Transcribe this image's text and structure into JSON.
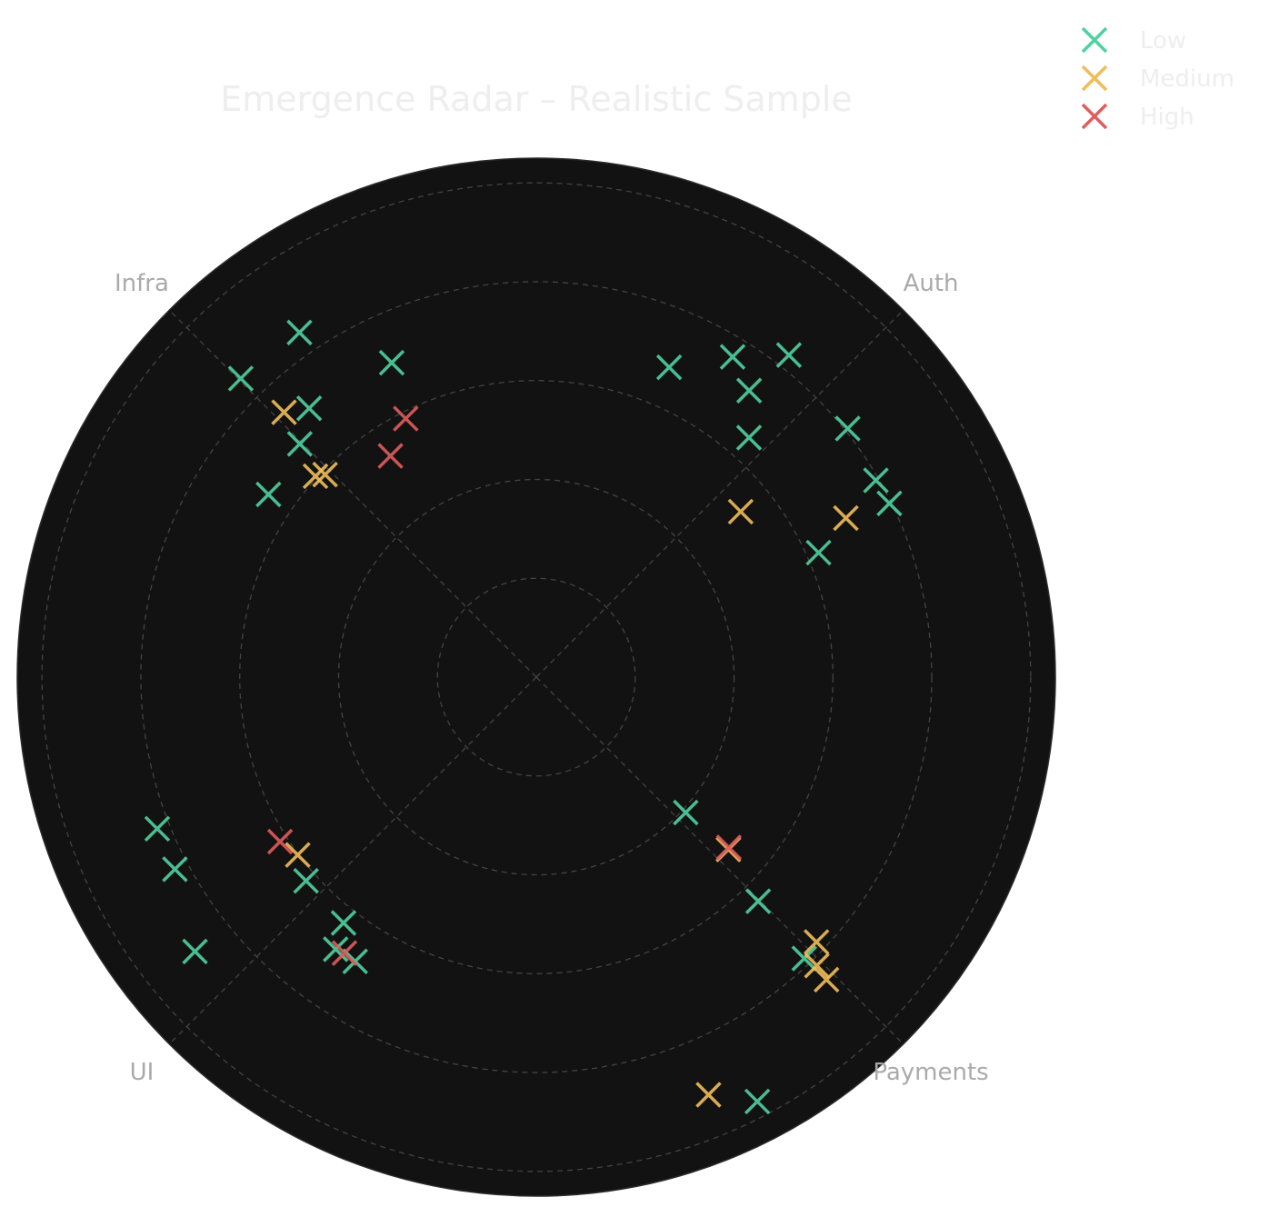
{
  "chart_data": {
    "type": "scatter",
    "projection": "polar",
    "title": "Emergence Radar – Realistic Sample",
    "axes": [
      {
        "label": "Auth",
        "angle_deg": 45
      },
      {
        "label": "Infra",
        "angle_deg": 135
      },
      {
        "label": "UI",
        "angle_deg": 225
      },
      {
        "label": "Payments",
        "angle_deg": 315
      }
    ],
    "rlim": [
      0,
      5.25
    ],
    "rings": [
      1,
      2,
      3,
      4,
      5
    ],
    "grid": true,
    "legend_placement": "top-right",
    "series": [
      {
        "name": "Low",
        "color": "#4fd1a0",
        "points": [
          {
            "theta": 53.4,
            "r": 3.61
          },
          {
            "theta": 66.8,
            "r": 3.41
          },
          {
            "theta": 58.5,
            "r": 3.8
          },
          {
            "theta": 48.4,
            "r": 3.24
          },
          {
            "theta": 51.9,
            "r": 4.14
          },
          {
            "theta": 38.6,
            "r": 4.03
          },
          {
            "theta": 23.8,
            "r": 3.12
          },
          {
            "theta": 26.2,
            "r": 3.98
          },
          {
            "theta": 30.1,
            "r": 3.97
          },
          {
            "theta": 124.5,
            "r": 4.23
          },
          {
            "theta": 134.7,
            "r": 4.25
          },
          {
            "theta": 114.7,
            "r": 3.5
          },
          {
            "theta": 130.2,
            "r": 3.56
          },
          {
            "theta": 145.7,
            "r": 3.28
          },
          {
            "theta": 135.4,
            "r": 3.36
          },
          {
            "theta": 208.0,
            "r": 4.14
          },
          {
            "theta": 201.8,
            "r": 4.13
          },
          {
            "theta": 218.8,
            "r": 4.43
          },
          {
            "theta": 231.9,
            "r": 3.16
          },
          {
            "theta": 237.5,
            "r": 3.41
          },
          {
            "theta": 233.6,
            "r": 3.42
          },
          {
            "theta": 221.5,
            "r": 3.11
          },
          {
            "theta": 317.8,
            "r": 2.04
          },
          {
            "theta": 314.7,
            "r": 3.19
          },
          {
            "theta": 313.6,
            "r": 3.93
          },
          {
            "theta": 297.5,
            "r": 4.84
          }
        ]
      },
      {
        "name": "Medium",
        "color": "#f0bd5a",
        "points": [
          {
            "theta": 39.0,
            "r": 2.66
          },
          {
            "theta": 27.2,
            "r": 3.52
          },
          {
            "theta": 133.6,
            "r": 3.7
          },
          {
            "theta": 137.7,
            "r": 3.02
          },
          {
            "theta": 136.2,
            "r": 2.96
          },
          {
            "theta": 216.7,
            "r": 3.01
          },
          {
            "theta": 318.1,
            "r": 2.61
          },
          {
            "theta": 316.6,
            "r": 3.9
          },
          {
            "theta": 314.2,
            "r": 4.07
          },
          {
            "theta": 313.8,
            "r": 4.24
          },
          {
            "theta": 292.4,
            "r": 4.57
          }
        ]
      },
      {
        "name": "High",
        "color": "#e15c5c",
        "points": [
          {
            "theta": 123.4,
            "r": 2.68
          },
          {
            "theta": 116.8,
            "r": 2.93
          },
          {
            "theta": 212.7,
            "r": 3.08
          },
          {
            "theta": 235.2,
            "r": 3.4
          },
          {
            "theta": 318.5,
            "r": 2.6
          }
        ]
      }
    ]
  }
}
